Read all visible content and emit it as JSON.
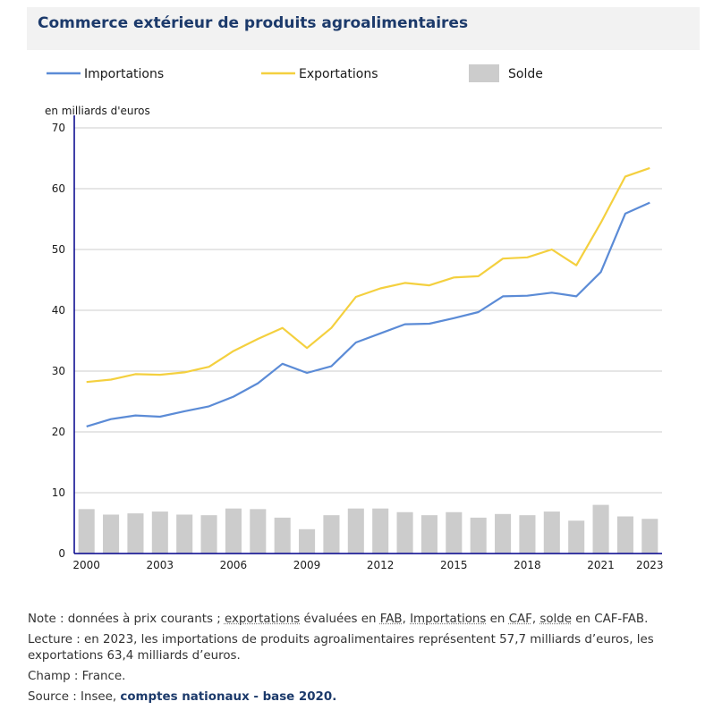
{
  "title": "Commerce extérieur de produits agroalimentaires",
  "colors": {
    "importations": "#5b8bd6",
    "exportations": "#f4d03f",
    "solde": "#cccccc",
    "axis": "#00008b",
    "grid": "#cccccc",
    "title": "#1c3a6b"
  },
  "chart_data": {
    "type": "line",
    "unit_label": "en milliards d'euros",
    "ylim": [
      0,
      70
    ],
    "y_ticks": [
      0,
      10,
      20,
      30,
      40,
      50,
      60,
      70
    ],
    "x": [
      2000,
      2001,
      2002,
      2003,
      2004,
      2005,
      2006,
      2007,
      2008,
      2009,
      2010,
      2011,
      2012,
      2013,
      2014,
      2015,
      2016,
      2017,
      2018,
      2019,
      2020,
      2021,
      2022,
      2023
    ],
    "x_tick_labels": [
      "2000",
      "2003",
      "2006",
      "2009",
      "2012",
      "2015",
      "2018",
      "2021",
      "2023"
    ],
    "grid": true,
    "legend_position": "top",
    "series": [
      {
        "name": "Importations",
        "type": "line",
        "values": [
          20.9,
          22.1,
          22.7,
          22.5,
          23.4,
          24.2,
          25.8,
          28.0,
          31.2,
          29.7,
          30.8,
          34.7,
          36.2,
          37.7,
          37.8,
          38.7,
          39.7,
          42.3,
          42.4,
          42.9,
          42.3,
          46.3,
          55.9,
          57.7
        ]
      },
      {
        "name": "Exportations",
        "type": "line",
        "values": [
          28.2,
          28.6,
          29.5,
          29.4,
          29.8,
          30.7,
          33.3,
          35.3,
          37.1,
          33.8,
          37.1,
          42.2,
          43.6,
          44.5,
          44.1,
          45.4,
          45.6,
          48.5,
          48.7,
          50.0,
          47.4,
          54.4,
          62.0,
          63.4
        ]
      },
      {
        "name": "Solde",
        "type": "bar",
        "values": [
          7.3,
          6.4,
          6.6,
          6.9,
          6.4,
          6.3,
          7.4,
          7.3,
          5.9,
          4.0,
          6.3,
          7.4,
          7.4,
          6.8,
          6.3,
          6.8,
          5.9,
          6.5,
          6.3,
          6.9,
          5.4,
          8.0,
          6.1,
          5.7
        ]
      }
    ]
  },
  "notes": {
    "note_prefix": "Note : données à prix courants ",
    "note_sep1": "; ",
    "note_exports": "exportations",
    "note_mid": " évaluées en ",
    "note_fab": "FAB",
    "note_sep2": ", ",
    "note_imports": "Importations",
    "note_en": " en ",
    "note_caf": "CAF",
    "note_sep3": ", ",
    "note_solde": "solde",
    "note_end": " en CAF-FAB.",
    "lecture": "Lecture : en 2023, les importations de produits agroalimentaires représentent 57,7 milliards d’euros, les exportations 63,4 milliards d’euros.",
    "champ": "Champ : France.",
    "source_prefix": "Source : Insee, ",
    "source_link": "comptes nationaux - base 2020."
  }
}
